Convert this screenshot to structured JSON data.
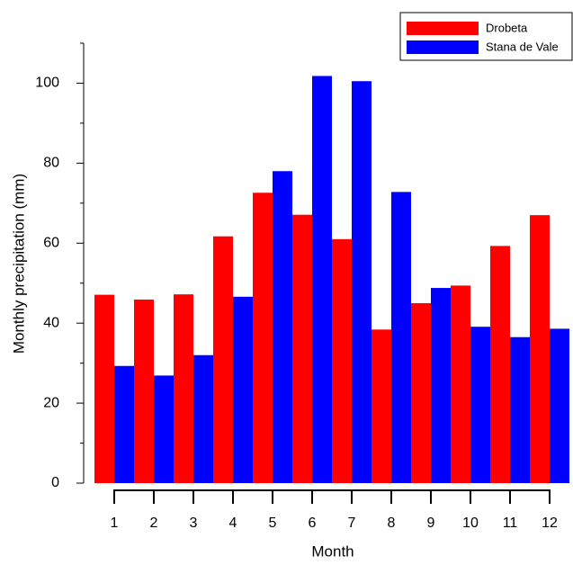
{
  "chart_data": {
    "type": "bar",
    "x_label": "Month",
    "y_label": "Monthly precipitation (mm)",
    "categories": [
      "1",
      "2",
      "3",
      "4",
      "5",
      "6",
      "7",
      "8",
      "9",
      "10",
      "11",
      "12"
    ],
    "series": [
      {
        "name": "Drobeta",
        "color": "#ff0000",
        "values": [
          47.1,
          45.9,
          47.2,
          61.7,
          72.6,
          67.1,
          61.0,
          38.4,
          45.0,
          49.4,
          59.3,
          67.0
        ]
      },
      {
        "name": "Stana de Vale",
        "color": "#0000ff",
        "values": [
          29.3,
          26.9,
          32.0,
          46.6,
          78.0,
          101.8,
          100.5,
          72.8,
          48.8,
          39.1,
          36.5,
          38.6
        ]
      }
    ],
    "ylim": [
      0,
      110
    ],
    "yticks": [
      0,
      20,
      40,
      60,
      80,
      100
    ],
    "yminorticks": [
      10,
      30,
      50,
      70,
      90,
      110
    ],
    "legend": "top-right"
  }
}
